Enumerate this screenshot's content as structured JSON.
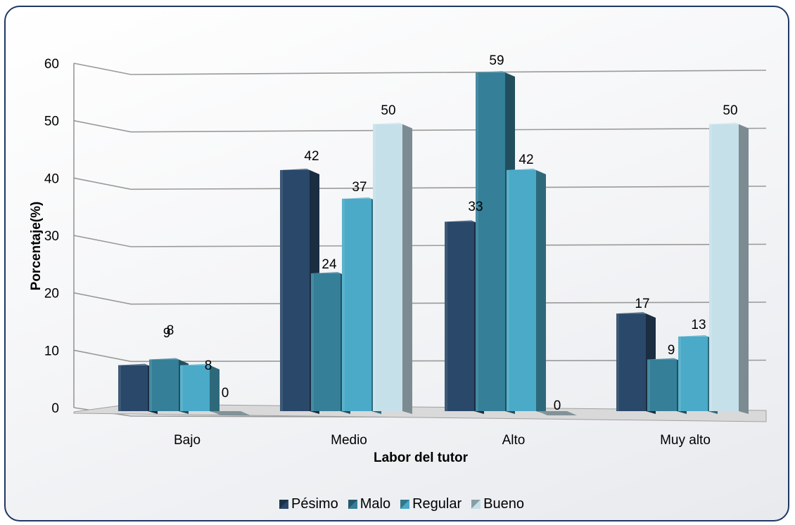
{
  "chart_data": {
    "type": "bar",
    "categories": [
      "Bajo",
      "Medio",
      "Alto",
      "Muy alto"
    ],
    "series": [
      {
        "name": "Pésimo",
        "color": "#2a4869",
        "values": [
          8,
          42,
          33,
          17
        ]
      },
      {
        "name": "Malo",
        "color": "#357f98",
        "values": [
          9,
          24,
          59,
          9
        ]
      },
      {
        "name": "Regular",
        "color": "#4aaac7",
        "values": [
          8,
          37,
          42,
          13
        ]
      },
      {
        "name": "Bueno",
        "color": "#c6e0ea",
        "values": [
          0,
          50,
          0,
          50
        ]
      }
    ],
    "xlabel": "Labor del tutor",
    "ylabel": "Porcentaje(%)",
    "ylim": [
      0,
      60
    ],
    "yticks": [
      "0",
      "10",
      "20",
      "30",
      "40",
      "50",
      "60"
    ],
    "grid": true,
    "legend_position": "bottom",
    "data_labels": [
      [
        "8",
        "42",
        "33",
        "17"
      ],
      [
        "9",
        "24",
        "59",
        "9"
      ],
      [
        "8",
        "37",
        "42",
        "13"
      ],
      [
        "0",
        "50",
        "0",
        "50"
      ]
    ]
  }
}
